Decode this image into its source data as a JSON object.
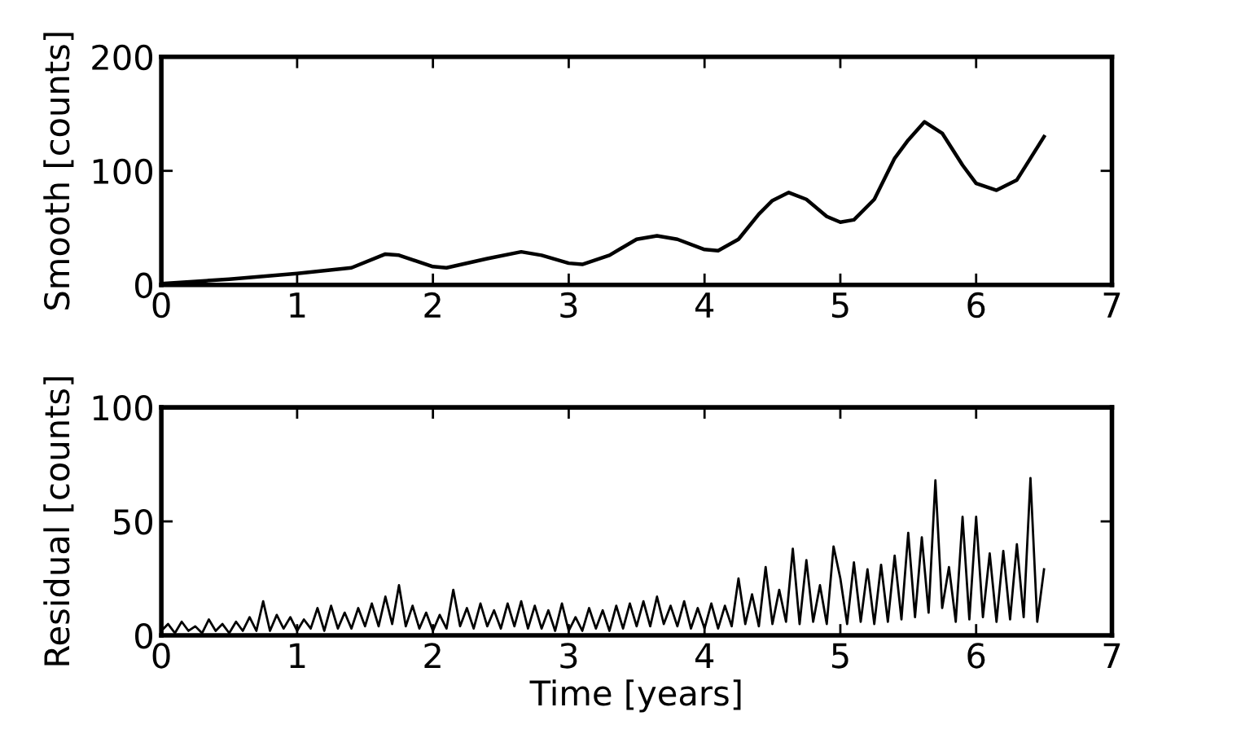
{
  "chart_data": [
    {
      "type": "line",
      "ylabel": "Smooth [counts]",
      "xlim": [
        0,
        7
      ],
      "xticks": [
        0,
        1,
        2,
        3,
        4,
        5,
        6,
        7
      ],
      "ylim": [
        0,
        200
      ],
      "yticks": [
        0,
        100,
        200
      ],
      "x": [
        0,
        0.5,
        1,
        1.4,
        1.65,
        1.75,
        2.0,
        2.1,
        2.4,
        2.65,
        2.8,
        3.0,
        3.1,
        3.3,
        3.5,
        3.65,
        3.8,
        4.0,
        4.1,
        4.25,
        4.4,
        4.5,
        4.62,
        4.75,
        4.9,
        5.0,
        5.1,
        5.25,
        5.4,
        5.5,
        5.62,
        5.75,
        5.9,
        6.0,
        6.15,
        6.3,
        6.4,
        6.5
      ],
      "series": [
        {
          "color": "#000000",
          "values": [
            1,
            5,
            10,
            15,
            27,
            26,
            16,
            15,
            23,
            29,
            26,
            19,
            18,
            26,
            40,
            43,
            40,
            31,
            30,
            40,
            62,
            74,
            81,
            75,
            60,
            55,
            57,
            75,
            111,
            127,
            143,
            133,
            105,
            89,
            83,
            92,
            111,
            130
          ]
        }
      ]
    },
    {
      "type": "line",
      "ylabel": "Residual [counts]",
      "xlabel": "Time [years]",
      "xlim": [
        0,
        7
      ],
      "xticks": [
        0,
        1,
        2,
        3,
        4,
        5,
        6,
        7
      ],
      "ylim": [
        0,
        100
      ],
      "yticks": [
        0,
        50,
        100
      ],
      "x": [
        0.0,
        0.05,
        0.1,
        0.15,
        0.2,
        0.25,
        0.3,
        0.35,
        0.4,
        0.45,
        0.5,
        0.55,
        0.6,
        0.65,
        0.7,
        0.75,
        0.8,
        0.85,
        0.9,
        0.95,
        1.0,
        1.05,
        1.1,
        1.15,
        1.2,
        1.25,
        1.3,
        1.35,
        1.4,
        1.45,
        1.5,
        1.55,
        1.6,
        1.65,
        1.7,
        1.75,
        1.8,
        1.85,
        1.9,
        1.95,
        2.0,
        2.05,
        2.1,
        2.15,
        2.2,
        2.25,
        2.3,
        2.35,
        2.4,
        2.45,
        2.5,
        2.55,
        2.6,
        2.65,
        2.7,
        2.75,
        2.8,
        2.85,
        2.9,
        2.95,
        3.0,
        3.05,
        3.1,
        3.15,
        3.2,
        3.25,
        3.3,
        3.35,
        3.4,
        3.45,
        3.5,
        3.55,
        3.6,
        3.65,
        3.7,
        3.75,
        3.8,
        3.85,
        3.9,
        3.95,
        4.0,
        4.05,
        4.1,
        4.15,
        4.2,
        4.25,
        4.3,
        4.35,
        4.4,
        4.45,
        4.5,
        4.55,
        4.6,
        4.65,
        4.7,
        4.75,
        4.8,
        4.85,
        4.9,
        4.95,
        5.0,
        5.05,
        5.1,
        5.15,
        5.2,
        5.25,
        5.3,
        5.35,
        5.4,
        5.45,
        5.5,
        5.55,
        5.6,
        5.65,
        5.7,
        5.75,
        5.8,
        5.85,
        5.9,
        5.95,
        6.0,
        6.05,
        6.1,
        6.15,
        6.2,
        6.25,
        6.3,
        6.35,
        6.4,
        6.45,
        6.5
      ],
      "series": [
        {
          "color": "#000000",
          "values": [
            2,
            5,
            1,
            6,
            2,
            4,
            1,
            7,
            2,
            5,
            1,
            6,
            2,
            8,
            2,
            15,
            2,
            9,
            3,
            8,
            2,
            7,
            3,
            12,
            2,
            13,
            3,
            10,
            3,
            12,
            4,
            14,
            4,
            17,
            5,
            22,
            4,
            13,
            3,
            10,
            2,
            9,
            3,
            20,
            4,
            12,
            3,
            14,
            4,
            11,
            3,
            14,
            4,
            15,
            3,
            13,
            3,
            11,
            2,
            14,
            2,
            8,
            2,
            12,
            3,
            11,
            2,
            13,
            3,
            14,
            4,
            15,
            4,
            17,
            5,
            13,
            4,
            15,
            3,
            12,
            3,
            14,
            3,
            13,
            4,
            25,
            5,
            18,
            4,
            30,
            5,
            20,
            6,
            38,
            5,
            33,
            6,
            22,
            5,
            39,
            25,
            5,
            32,
            6,
            29,
            5,
            31,
            6,
            35,
            7,
            45,
            8,
            43,
            10,
            68,
            12,
            30,
            6,
            52,
            7,
            52,
            8,
            36,
            6,
            37,
            7,
            40,
            8,
            69,
            6,
            29
          ]
        }
      ]
    }
  ]
}
